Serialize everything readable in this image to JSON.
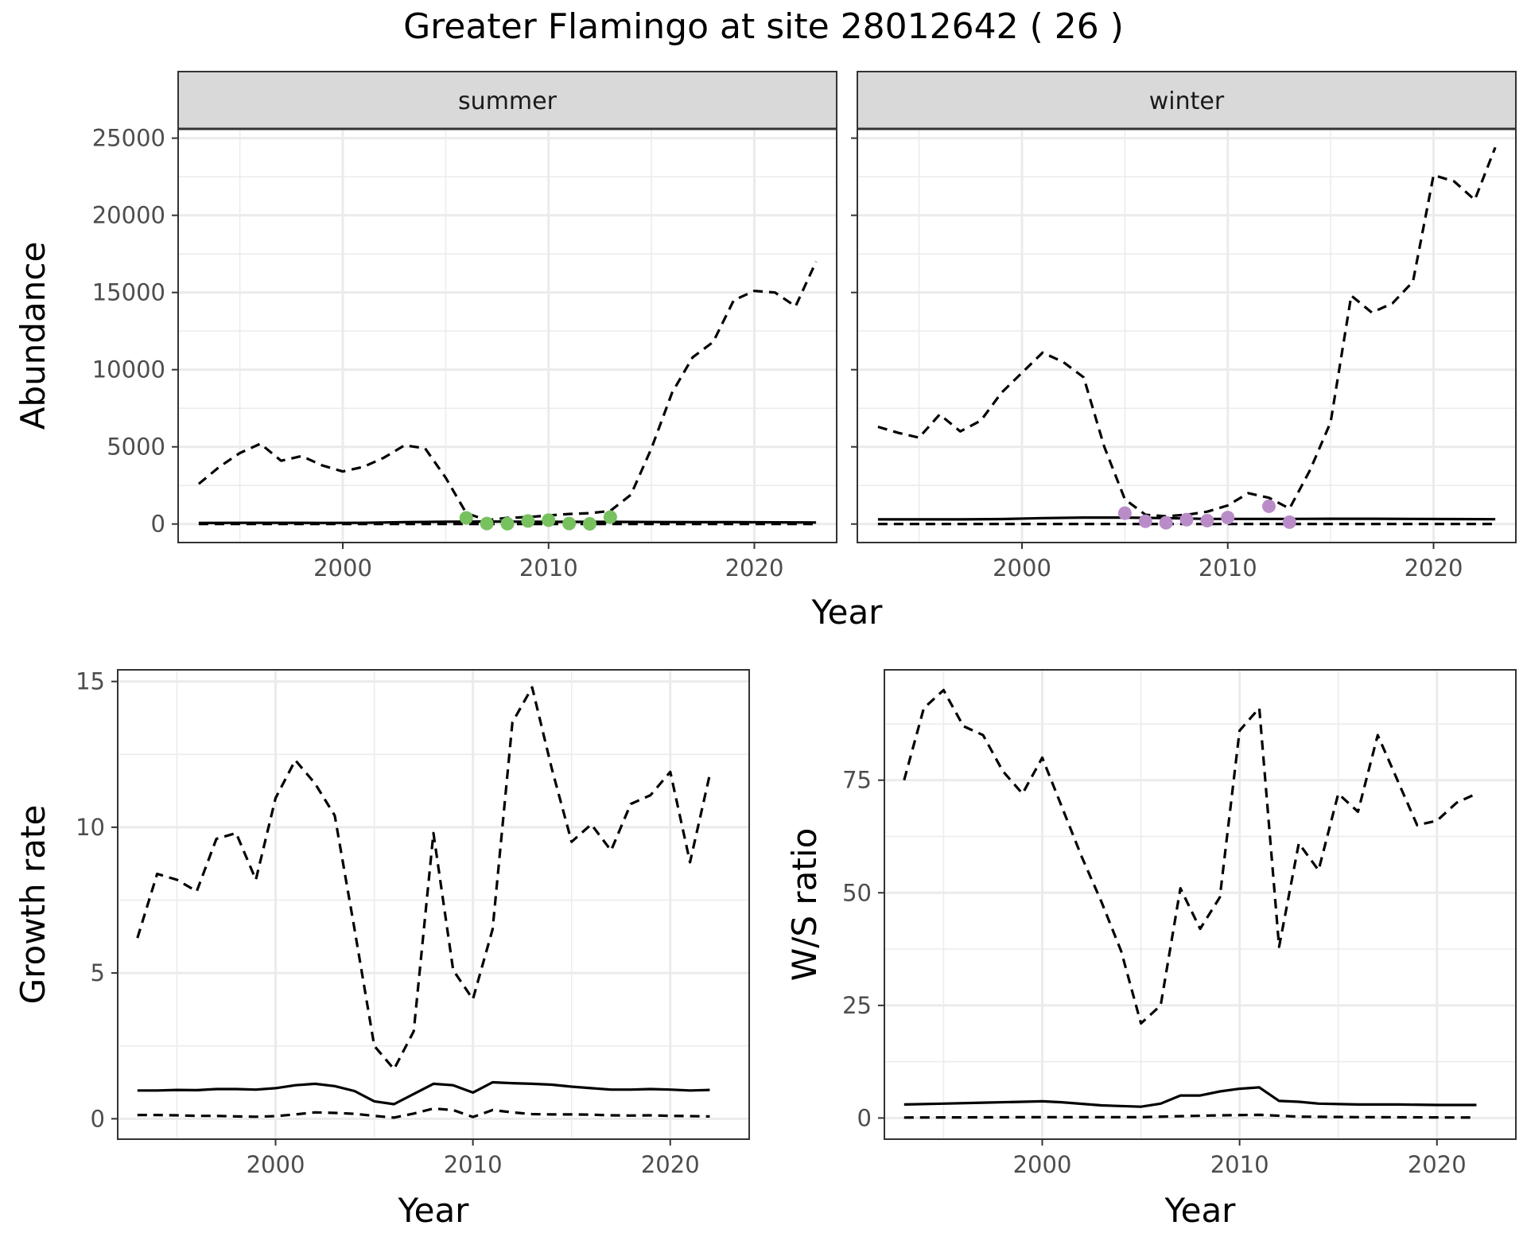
{
  "title": "Greater Flamingo at site 28012642 ( 26 )",
  "colors": {
    "summer_points": "#77c15f",
    "winter_points": "#b98cc8",
    "lines": "#000000"
  },
  "chart_data": [
    {
      "type": "line",
      "id": "abundance-summer",
      "facet": "summer",
      "ylabel": "Abundance",
      "xlabel": "Year",
      "xlim": [
        1992,
        2024
      ],
      "ylim": [
        -1200,
        25600
      ],
      "x_breaks": [
        2000,
        2010,
        2020
      ],
      "y_breaks": [
        0,
        5000,
        10000,
        15000,
        20000,
        25000
      ],
      "x_tick_labels": [
        "2000",
        "2010",
        "2020"
      ],
      "y_tick_labels": [
        "0",
        "5000",
        "10000",
        "15000",
        "20000",
        "25000"
      ],
      "series": [
        {
          "style": "solid",
          "x": [
            1993,
            1995,
            1997,
            1999,
            2001,
            2003,
            2005,
            2007,
            2009,
            2011,
            2013,
            2015,
            2017,
            2019,
            2021,
            2023
          ],
          "y": [
            70,
            80,
            80,
            75,
            80,
            120,
            150,
            160,
            150,
            140,
            140,
            130,
            120,
            120,
            110,
            100
          ]
        },
        {
          "style": "dashed-upper",
          "x": [
            1993,
            1994,
            1995,
            1996,
            1997,
            1998,
            1999,
            2000,
            2001,
            2002,
            2003,
            2004,
            2005,
            2006,
            2007,
            2008,
            2009,
            2010,
            2011,
            2012,
            2013,
            2014,
            2015,
            2016,
            2017,
            2018,
            2019,
            2020,
            2021,
            2022,
            2023
          ],
          "y": [
            2600,
            3700,
            4600,
            5200,
            4100,
            4400,
            3800,
            3400,
            3700,
            4300,
            5100,
            4900,
            3000,
            700,
            250,
            400,
            450,
            550,
            650,
            700,
            850,
            1900,
            4900,
            8500,
            10800,
            11800,
            14500,
            15100,
            15000,
            14100,
            17000
          ]
        },
        {
          "style": "dashed-lower",
          "x": [
            1993,
            2023
          ],
          "y": [
            0,
            0
          ]
        }
      ],
      "points": {
        "x": [
          2006,
          2007,
          2008,
          2009,
          2010,
          2011,
          2012,
          2013
        ],
        "y": [
          400,
          30,
          20,
          200,
          250,
          30,
          10,
          450
        ]
      }
    },
    {
      "type": "line",
      "id": "abundance-winter",
      "facet": "winter",
      "xlim": [
        1992,
        2024
      ],
      "ylim": [
        -1200,
        25600
      ],
      "x_breaks": [
        2000,
        2010,
        2020
      ],
      "y_breaks": [
        0,
        5000,
        10000,
        15000,
        20000,
        25000
      ],
      "x_tick_labels": [
        "2000",
        "2010",
        "2020"
      ],
      "series": [
        {
          "style": "solid",
          "x": [
            1993,
            1995,
            1997,
            1999,
            2001,
            2003,
            2005,
            2007,
            2009,
            2011,
            2013,
            2015,
            2017,
            2019,
            2021,
            2023
          ],
          "y": [
            300,
            300,
            300,
            320,
            380,
            420,
            420,
            380,
            330,
            330,
            330,
            340,
            340,
            330,
            320,
            310
          ]
        },
        {
          "style": "dashed-upper",
          "x": [
            1993,
            1994,
            1995,
            1996,
            1997,
            1998,
            1999,
            2000,
            2001,
            2002,
            2003,
            2004,
            2005,
            2006,
            2007,
            2008,
            2009,
            2010,
            2011,
            2012,
            2013,
            2014,
            2015,
            2016,
            2017,
            2018,
            2019,
            2020,
            2021,
            2022,
            2023
          ],
          "y": [
            6300,
            5900,
            5600,
            7100,
            6000,
            6700,
            8500,
            9800,
            11100,
            10500,
            9500,
            5000,
            1600,
            600,
            500,
            600,
            800,
            1200,
            2000,
            1700,
            1000,
            3500,
            6600,
            14800,
            13700,
            14300,
            15700,
            22600,
            22200,
            21000,
            24400
          ]
        },
        {
          "style": "dashed-lower",
          "x": [
            1993,
            2023
          ],
          "y": [
            0,
            0
          ]
        }
      ],
      "points": {
        "x": [
          2005,
          2006,
          2007,
          2008,
          2009,
          2010,
          2012,
          2013
        ],
        "y": [
          700,
          180,
          80,
          280,
          220,
          420,
          1150,
          120
        ]
      }
    },
    {
      "type": "line",
      "id": "growth-rate",
      "ylabel": "Growth rate",
      "xlabel": "Year",
      "xlim": [
        1992,
        2024
      ],
      "ylim": [
        -0.7,
        15.4
      ],
      "x_breaks": [
        2000,
        2010,
        2020
      ],
      "y_breaks": [
        0,
        5,
        10,
        15
      ],
      "x_tick_labels": [
        "2000",
        "2010",
        "2020"
      ],
      "y_tick_labels": [
        "0",
        "5",
        "10",
        "15"
      ],
      "series": [
        {
          "style": "solid",
          "x": [
            1993,
            1994,
            1995,
            1996,
            1997,
            1998,
            1999,
            2000,
            2001,
            2002,
            2003,
            2004,
            2005,
            2006,
            2007,
            2008,
            2009,
            2010,
            2011,
            2012,
            2013,
            2014,
            2015,
            2016,
            2017,
            2018,
            2019,
            2020,
            2021,
            2022
          ],
          "y": [
            0.97,
            0.97,
            0.99,
            0.98,
            1.02,
            1.02,
            1.0,
            1.05,
            1.15,
            1.2,
            1.12,
            0.95,
            0.6,
            0.5,
            0.85,
            1.2,
            1.15,
            0.9,
            1.25,
            1.22,
            1.2,
            1.17,
            1.1,
            1.05,
            1.0,
            1.0,
            1.02,
            1.0,
            0.97,
            0.99
          ]
        },
        {
          "style": "dashed-upper",
          "x": [
            1993,
            1994,
            1995,
            1996,
            1997,
            1998,
            1999,
            2000,
            2001,
            2002,
            2003,
            2004,
            2005,
            2006,
            2007,
            2008,
            2009,
            2010,
            2011,
            2012,
            2013,
            2014,
            2015,
            2016,
            2017,
            2018,
            2019,
            2020,
            2021,
            2022
          ],
          "y": [
            6.2,
            8.4,
            8.2,
            7.8,
            9.6,
            9.8,
            8.2,
            11.0,
            12.3,
            11.5,
            10.4,
            6.5,
            2.5,
            1.7,
            3.0,
            9.8,
            5.1,
            4.1,
            6.5,
            13.6,
            14.8,
            12.0,
            9.5,
            10.1,
            9.2,
            10.8,
            11.1,
            11.9,
            8.8,
            11.8
          ]
        },
        {
          "style": "dashed-lower",
          "x": [
            1993,
            1994,
            1995,
            1996,
            1997,
            1998,
            1999,
            2000,
            2001,
            2002,
            2003,
            2004,
            2005,
            2006,
            2007,
            2008,
            2009,
            2010,
            2011,
            2012,
            2013,
            2014,
            2015,
            2016,
            2017,
            2018,
            2019,
            2020,
            2021,
            2022
          ],
          "y": [
            0.13,
            0.13,
            0.12,
            0.1,
            0.1,
            0.08,
            0.07,
            0.09,
            0.15,
            0.22,
            0.2,
            0.17,
            0.1,
            0.04,
            0.18,
            0.35,
            0.3,
            0.06,
            0.3,
            0.22,
            0.16,
            0.15,
            0.15,
            0.14,
            0.12,
            0.11,
            0.12,
            0.1,
            0.09,
            0.08
          ]
        }
      ]
    },
    {
      "type": "line",
      "id": "ws-ratio",
      "ylabel": "W/S ratio",
      "xlabel": "Year",
      "xlim": [
        1992,
        2024
      ],
      "ylim": [
        -4.7,
        99.5
      ],
      "x_breaks": [
        2000,
        2010,
        2020
      ],
      "y_breaks": [
        0,
        25,
        50,
        75
      ],
      "x_tick_labels": [
        "2000",
        "2010",
        "2020"
      ],
      "y_tick_labels": [
        "0",
        "25",
        "50",
        "75"
      ],
      "series": [
        {
          "style": "solid",
          "x": [
            1993,
            1995,
            1997,
            1999,
            2000,
            2001,
            2003,
            2005,
            2006,
            2007,
            2008,
            2009,
            2010,
            2011,
            2012,
            2013,
            2014,
            2016,
            2018,
            2020,
            2022
          ],
          "y": [
            3.0,
            3.2,
            3.4,
            3.6,
            3.7,
            3.5,
            2.8,
            2.5,
            3.2,
            5.0,
            5.0,
            5.9,
            6.5,
            6.8,
            3.8,
            3.6,
            3.2,
            3.0,
            3.0,
            2.9,
            2.9
          ]
        },
        {
          "style": "dashed-upper",
          "x": [
            1993,
            1994,
            1995,
            1996,
            1997,
            1998,
            1999,
            2000,
            2001,
            2002,
            2003,
            2004,
            2005,
            2006,
            2007,
            2008,
            2009,
            2010,
            2011,
            2012,
            2013,
            2014,
            2015,
            2016,
            2017,
            2018,
            2019,
            2020,
            2021,
            2022
          ],
          "y": [
            75,
            91,
            95,
            87,
            85,
            77,
            72,
            80,
            69,
            58,
            48,
            37,
            21,
            25,
            51,
            42,
            49,
            86,
            91,
            38,
            61,
            55,
            72,
            68,
            85,
            75,
            65,
            66,
            70,
            72
          ]
        },
        {
          "style": "dashed-lower",
          "x": [
            1993,
            2000,
            2005,
            2007,
            2009,
            2011,
            2013,
            2016,
            2022
          ],
          "y": [
            0.1,
            0.2,
            0.2,
            0.4,
            0.6,
            0.7,
            0.3,
            0.2,
            0.1
          ]
        }
      ]
    }
  ]
}
